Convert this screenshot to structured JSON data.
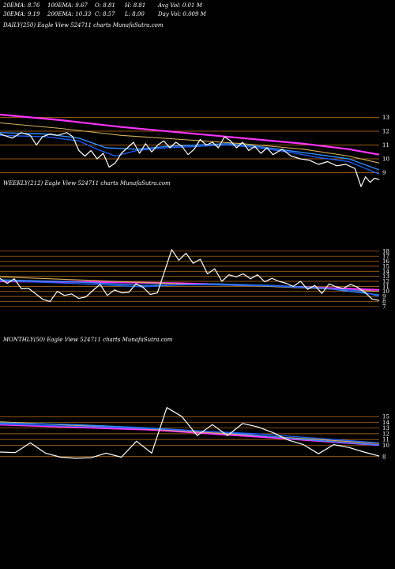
{
  "header": {
    "row1": [
      {
        "label": "20EMA: 8.76"
      },
      {
        "label": "100EMA: 9.67"
      },
      {
        "label": "O: 8.81"
      },
      {
        "label": "H: 8.81"
      },
      {
        "label": "Avg Vol: 0.01 M"
      }
    ],
    "row2": [
      {
        "label": "30EMA: 9.19"
      },
      {
        "label": "200EMA: 10.33"
      },
      {
        "label": "C: 8.57"
      },
      {
        "label": "L: 8.00"
      },
      {
        "label": "Day Vol: 0.009 M"
      }
    ]
  },
  "colors": {
    "background": "#000000",
    "price": "#ffffff",
    "ema20": "#1f5fff",
    "ema30": "#2e8bff",
    "ema100": "#d9b35a",
    "ema200": "#ff33ff",
    "gridline": "#c8761a"
  },
  "chart_data": [
    {
      "type": "line",
      "title": "DAILY(250) Eagle  View  524711 charts MunafaSutra.com",
      "yticks": [
        9,
        10,
        11,
        12,
        13
      ],
      "ylim": [
        7.6,
        13.6
      ],
      "n": 250,
      "series": [
        {
          "key": "price",
          "points": [
            [
              0,
              11.8
            ],
            [
              8,
              11.5
            ],
            [
              14,
              11.9
            ],
            [
              20,
              11.7
            ],
            [
              24,
              11.0
            ],
            [
              28,
              11.6
            ],
            [
              33,
              11.8
            ],
            [
              38,
              11.7
            ],
            [
              44,
              11.9
            ],
            [
              48,
              11.6
            ],
            [
              52,
              10.6
            ],
            [
              56,
              10.2
            ],
            [
              60,
              10.6
            ],
            [
              64,
              10.0
            ],
            [
              68,
              10.4
            ],
            [
              72,
              9.4
            ],
            [
              76,
              9.7
            ],
            [
              80,
              10.4
            ],
            [
              84,
              10.8
            ],
            [
              88,
              11.2
            ],
            [
              92,
              10.4
            ],
            [
              96,
              11.1
            ],
            [
              100,
              10.5
            ],
            [
              104,
              11.0
            ],
            [
              108,
              11.3
            ],
            [
              112,
              10.8
            ],
            [
              116,
              11.2
            ],
            [
              120,
              10.9
            ],
            [
              124,
              10.3
            ],
            [
              128,
              10.7
            ],
            [
              132,
              11.4
            ],
            [
              136,
              11.0
            ],
            [
              140,
              11.2
            ],
            [
              144,
              10.8
            ],
            [
              148,
              11.6
            ],
            [
              152,
              11.3
            ],
            [
              156,
              10.8
            ],
            [
              160,
              11.2
            ],
            [
              164,
              10.6
            ],
            [
              168,
              10.9
            ],
            [
              172,
              10.4
            ],
            [
              176,
              10.8
            ],
            [
              180,
              10.3
            ],
            [
              186,
              10.7
            ],
            [
              192,
              10.2
            ],
            [
              198,
              10.0
            ],
            [
              204,
              9.9
            ],
            [
              210,
              9.6
            ],
            [
              216,
              9.8
            ],
            [
              222,
              9.5
            ],
            [
              228,
              9.6
            ],
            [
              234,
              9.3
            ],
            [
              238,
              8.0
            ],
            [
              241,
              8.7
            ],
            [
              244,
              8.3
            ],
            [
              247,
              8.6
            ],
            [
              250,
              8.5
            ]
          ]
        },
        {
          "key": "ema20",
          "points": [
            [
              0,
              11.7
            ],
            [
              30,
              11.6
            ],
            [
              52,
              11.3
            ],
            [
              64,
              10.7
            ],
            [
              76,
              10.2
            ],
            [
              90,
              10.6
            ],
            [
              110,
              10.8
            ],
            [
              130,
              10.9
            ],
            [
              150,
              11.0
            ],
            [
              170,
              10.8
            ],
            [
              190,
              10.5
            ],
            [
              210,
              10.1
            ],
            [
              230,
              9.8
            ],
            [
              250,
              8.9
            ]
          ]
        },
        {
          "key": "ema30",
          "points": [
            [
              0,
              11.9
            ],
            [
              30,
              11.8
            ],
            [
              52,
              11.5
            ],
            [
              70,
              10.8
            ],
            [
              90,
              10.7
            ],
            [
              110,
              10.9
            ],
            [
              130,
              11.0
            ],
            [
              150,
              11.1
            ],
            [
              170,
              10.9
            ],
            [
              190,
              10.6
            ],
            [
              210,
              10.3
            ],
            [
              230,
              10.0
            ],
            [
              250,
              9.2
            ]
          ]
        },
        {
          "key": "ema100",
          "points": [
            [
              0,
              12.6
            ],
            [
              40,
              12.2
            ],
            [
              80,
              11.7
            ],
            [
              120,
              11.4
            ],
            [
              160,
              11.1
            ],
            [
              200,
              10.7
            ],
            [
              230,
              10.2
            ],
            [
              250,
              9.7
            ]
          ]
        },
        {
          "key": "ema200",
          "points": [
            [
              0,
              13.2
            ],
            [
              40,
              12.8
            ],
            [
              80,
              12.3
            ],
            [
              120,
              11.9
            ],
            [
              160,
              11.5
            ],
            [
              200,
              11.1
            ],
            [
              230,
              10.7
            ],
            [
              250,
              10.3
            ]
          ]
        }
      ]
    },
    {
      "type": "line",
      "title": "WEEKLY(212) Eagle  View  524711 charts MunafaSutra.com",
      "yticks": [
        7,
        8,
        9,
        10,
        11,
        12,
        13,
        14,
        15,
        16,
        17,
        18
      ],
      "ylim": [
        6.5,
        18.6
      ],
      "n": 212,
      "series": [
        {
          "key": "price",
          "points": [
            [
              0,
              12.6
            ],
            [
              4,
              11.6
            ],
            [
              8,
              12.5
            ],
            [
              12,
              10.5
            ],
            [
              16,
              10.6
            ],
            [
              20,
              9.5
            ],
            [
              24,
              8.4
            ],
            [
              28,
              8.0
            ],
            [
              32,
              10.0
            ],
            [
              36,
              9.2
            ],
            [
              40,
              9.5
            ],
            [
              44,
              8.6
            ],
            [
              48,
              8.9
            ],
            [
              52,
              10.2
            ],
            [
              56,
              11.4
            ],
            [
              60,
              9.2
            ],
            [
              64,
              10.3
            ],
            [
              68,
              9.7
            ],
            [
              72,
              9.8
            ],
            [
              76,
              11.5
            ],
            [
              80,
              10.8
            ],
            [
              84,
              9.4
            ],
            [
              88,
              9.7
            ],
            [
              92,
              14.0
            ],
            [
              96,
              18.3
            ],
            [
              100,
              16.2
            ],
            [
              104,
              17.6
            ],
            [
              108,
              15.6
            ],
            [
              112,
              16.4
            ],
            [
              116,
              13.5
            ],
            [
              120,
              14.5
            ],
            [
              124,
              12.0
            ],
            [
              128,
              13.3
            ],
            [
              132,
              12.9
            ],
            [
              136,
              13.5
            ],
            [
              140,
              12.5
            ],
            [
              144,
              13.3
            ],
            [
              148,
              11.9
            ],
            [
              152,
              12.6
            ],
            [
              156,
              12.0
            ],
            [
              160,
              11.6
            ],
            [
              164,
              11.0
            ],
            [
              168,
              12.0
            ],
            [
              172,
              10.4
            ],
            [
              176,
              11.2
            ],
            [
              180,
              9.6
            ],
            [
              184,
              11.5
            ],
            [
              188,
              10.9
            ],
            [
              192,
              10.6
            ],
            [
              196,
              11.4
            ],
            [
              200,
              10.8
            ],
            [
              204,
              9.8
            ],
            [
              208,
              8.5
            ],
            [
              212,
              8.2
            ]
          ]
        },
        {
          "key": "ema20",
          "points": [
            [
              0,
              12.1
            ],
            [
              40,
              11.6
            ],
            [
              80,
              10.9
            ],
            [
              100,
              11.3
            ],
            [
              120,
              11.3
            ],
            [
              150,
              11.1
            ],
            [
              180,
              10.6
            ],
            [
              200,
              10.2
            ],
            [
              212,
              9.0
            ]
          ]
        },
        {
          "key": "ema30",
          "points": [
            [
              0,
              12.3
            ],
            [
              40,
              11.9
            ],
            [
              80,
              11.2
            ],
            [
              100,
              11.3
            ],
            [
              120,
              11.5
            ],
            [
              150,
              11.2
            ],
            [
              180,
              10.7
            ],
            [
              212,
              9.3
            ]
          ]
        },
        {
          "key": "ema100",
          "points": [
            [
              0,
              12.9
            ],
            [
              50,
              12.2
            ],
            [
              100,
              11.5
            ],
            [
              150,
              11.0
            ],
            [
              212,
              10.0
            ]
          ]
        },
        {
          "key": "ema200",
          "points": [
            [
              0,
              12.0
            ],
            [
              50,
              11.9
            ],
            [
              100,
              11.6
            ],
            [
              150,
              11.1
            ],
            [
              212,
              10.3
            ]
          ]
        }
      ]
    },
    {
      "type": "line",
      "title": "MONTHLY(50) Eagle  View  524711 charts MunafaSutra.com",
      "yticks": [
        8,
        10,
        11,
        12,
        13,
        14,
        15
      ],
      "ylim": [
        7.0,
        16.0
      ],
      "n": 50,
      "series": [
        {
          "key": "price",
          "points": [
            [
              0,
              8.8
            ],
            [
              2,
              8.7
            ],
            [
              4,
              10.4
            ],
            [
              6,
              8.6
            ],
            [
              8,
              7.9
            ],
            [
              10,
              7.7
            ],
            [
              12,
              7.8
            ],
            [
              14,
              8.6
            ],
            [
              16,
              7.9
            ],
            [
              18,
              10.7
            ],
            [
              20,
              8.6
            ],
            [
              22,
              16.6
            ],
            [
              24,
              15.0
            ],
            [
              26,
              11.7
            ],
            [
              28,
              13.6
            ],
            [
              30,
              11.7
            ],
            [
              32,
              13.8
            ],
            [
              34,
              13.2
            ],
            [
              36,
              12.2
            ],
            [
              38,
              10.9
            ],
            [
              40,
              10.1
            ],
            [
              42,
              8.5
            ],
            [
              44,
              10.1
            ],
            [
              46,
              9.6
            ],
            [
              48,
              8.8
            ],
            [
              50,
              8.1
            ]
          ]
        },
        {
          "key": "ema20",
          "points": [
            [
              0,
              13.7
            ],
            [
              10,
              13.3
            ],
            [
              20,
              12.9
            ],
            [
              26,
              12.5
            ],
            [
              34,
              12.0
            ],
            [
              42,
              11.2
            ],
            [
              50,
              10.4
            ]
          ]
        },
        {
          "key": "ema30",
          "points": [
            [
              0,
              13.9
            ],
            [
              10,
              13.6
            ],
            [
              20,
              13.0
            ],
            [
              30,
              12.2
            ],
            [
              40,
              11.0
            ],
            [
              50,
              10.0
            ]
          ]
        },
        {
          "key": "ema100",
          "points": [
            [
              0,
              14.1
            ],
            [
              20,
              12.8
            ],
            [
              35,
              11.6
            ],
            [
              50,
              10.3
            ]
          ]
        },
        {
          "key": "ema200",
          "points": [
            [
              0,
              13.6
            ],
            [
              20,
              12.7
            ],
            [
              35,
              11.4
            ],
            [
              50,
              10.0
            ]
          ]
        }
      ]
    }
  ]
}
